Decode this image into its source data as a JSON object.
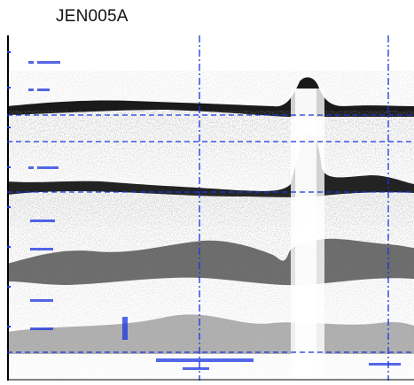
{
  "title": "JEN005A",
  "colors": {
    "grid": "#1a35e0",
    "noise_light": "#c9c9c9",
    "noise_dark": "#2a2a2a",
    "bottom_return": "#111111",
    "axis": "#000000"
  },
  "icons": {
    "depth_scale": "vertical-depth-axis",
    "echogram": "sonar-echogram"
  }
}
